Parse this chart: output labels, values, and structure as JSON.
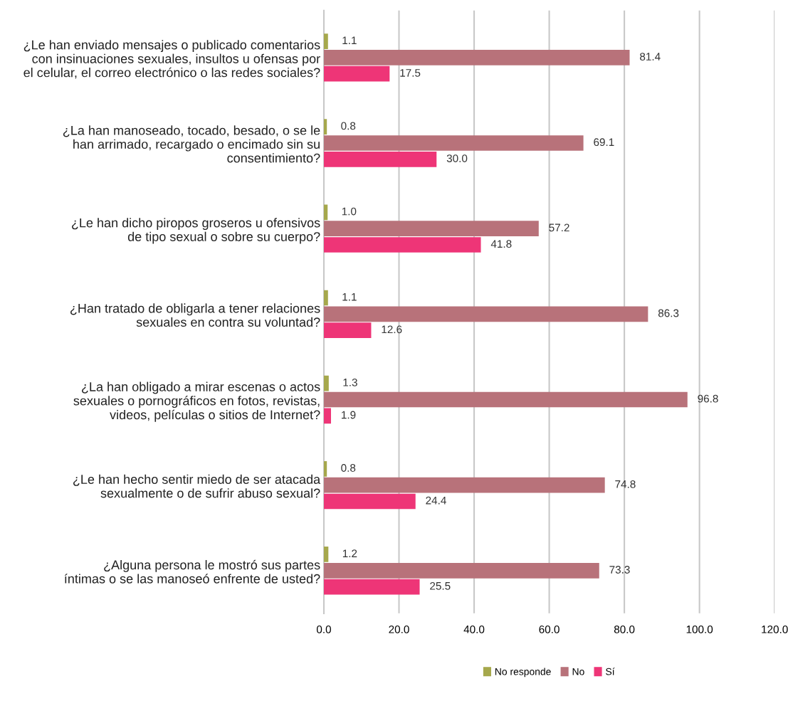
{
  "chart_data": {
    "type": "bar",
    "orientation": "horizontal",
    "categories": [
      "¿Le han enviado mensajes o publicado comentarios\ncon insinuaciones sexuales, insultos u ofensas por\nel celular, el correo electrónico o las redes sociales?",
      "¿La han manoseado, tocado, besado, o se le\nhan arrimado, recargado o encimado sin su\nconsentimiento?",
      "¿Le han dicho piropos groseros u ofensivos\nde tipo sexual o sobre su cuerpo?",
      "¿Han tratado de obligarla a tener relaciones\nsexuales en contra su voluntad?",
      "¿La han obligado a mirar escenas o actos\nsexuales o pornográficos en fotos, revistas,\nvideos, películas o sitios de Internet?",
      "¿Le han hecho sentir miedo de ser atacada\nsexualmente o de sufrir abuso sexual?",
      "¿Alguna persona le mostró sus partes\níntimas o se las manoseó enfrente de usted?"
    ],
    "series": [
      {
        "name": "No responde",
        "color": "#a6a84c",
        "values": [
          1.1,
          0.8,
          1.0,
          1.1,
          1.3,
          0.8,
          1.2
        ],
        "value_labels": [
          "1.1",
          "0.8",
          "1.0",
          "1.1",
          "1.3",
          "0.8",
          "1.2"
        ]
      },
      {
        "name": "No",
        "color": "#b8727a",
        "values": [
          81.4,
          69.1,
          57.2,
          86.3,
          96.8,
          74.8,
          73.3
        ],
        "value_labels": [
          "81.4",
          "69.1",
          "57.2",
          "86.3",
          "96.8",
          "74.8",
          "73.3"
        ]
      },
      {
        "name": "Sí",
        "color": "#ee3577",
        "values": [
          17.5,
          30.0,
          41.8,
          12.6,
          1.9,
          24.4,
          25.5
        ],
        "value_labels": [
          "17.5",
          "30.0",
          "41.8",
          "12.6",
          "1.9",
          "24.4",
          "25.5"
        ]
      }
    ],
    "xlim": [
      0,
      120
    ],
    "xticks": [
      {
        "value": 0,
        "label": "0.0"
      },
      {
        "value": 20,
        "label": "20.0"
      },
      {
        "value": 40,
        "label": "40.0"
      },
      {
        "value": 60,
        "label": "60.0"
      },
      {
        "value": 80,
        "label": "80.0"
      },
      {
        "value": 100,
        "label": "100.0"
      },
      {
        "value": 120,
        "label": "120.0"
      }
    ],
    "grid": "x",
    "legend": "bottom"
  }
}
